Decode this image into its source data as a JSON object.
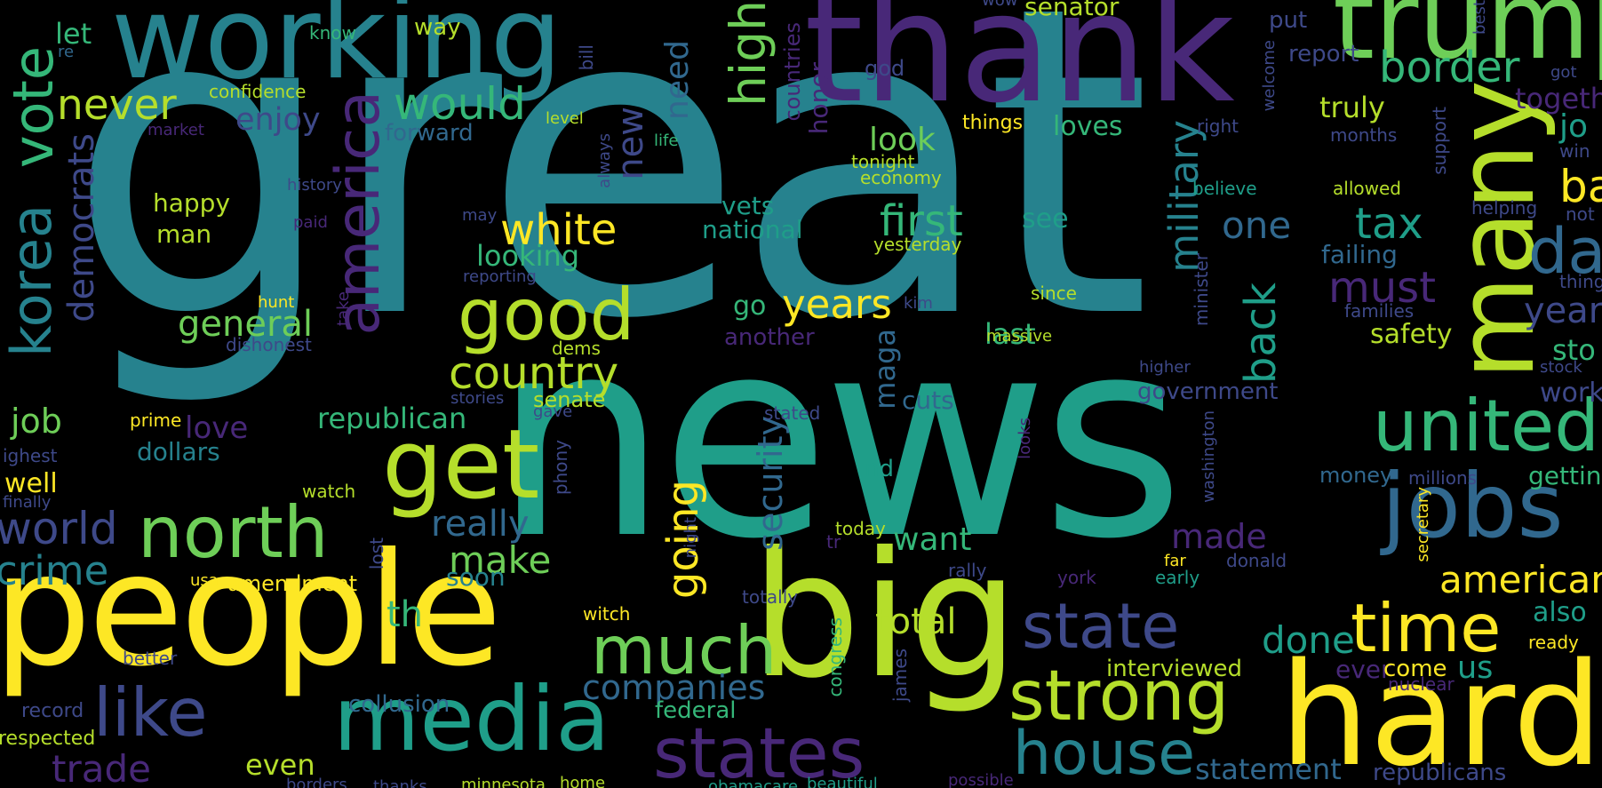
{
  "palette": {
    "yellow": "#fde725",
    "lime": "#b5de2b",
    "lightgreen": "#6ece58",
    "green": "#35b779",
    "teal": "#1f9e89",
    "cyan": "#26828e",
    "blue": "#31688e",
    "indigo": "#3e4989",
    "purple": "#482878",
    "violet": "#440154"
  },
  "words": [
    {
      "text": "great",
      "color": "cyan"
    },
    {
      "text": "news",
      "color": "teal"
    },
    {
      "text": "thank",
      "color": "purple"
    },
    {
      "text": "working",
      "color": "cyan"
    },
    {
      "text": "trump",
      "color": "lightgreen"
    },
    {
      "text": "people",
      "color": "yellow"
    },
    {
      "text": "big",
      "color": "lime"
    },
    {
      "text": "hard",
      "color": "yellow"
    },
    {
      "text": "many",
      "color": "lime"
    },
    {
      "text": "jobs",
      "color": "blue"
    },
    {
      "text": "media",
      "color": "teal"
    },
    {
      "text": "strong",
      "color": "lime"
    },
    {
      "text": "states",
      "color": "purple"
    },
    {
      "text": "united",
      "color": "green"
    },
    {
      "text": "north",
      "color": "lightgreen"
    },
    {
      "text": "get",
      "color": "lime"
    },
    {
      "text": "america",
      "color": "purple"
    },
    {
      "text": "vote",
      "color": "green"
    },
    {
      "text": "korea",
      "color": "cyan"
    },
    {
      "text": "good",
      "color": "lime"
    },
    {
      "text": "like",
      "color": "indigo"
    },
    {
      "text": "much",
      "color": "lightgreen"
    },
    {
      "text": "state",
      "color": "indigo"
    },
    {
      "text": "house",
      "color": "cyan"
    },
    {
      "text": "time",
      "color": "yellow"
    },
    {
      "text": "high",
      "color": "lightgreen"
    },
    {
      "text": "border",
      "color": "green"
    },
    {
      "text": "would",
      "color": "green"
    },
    {
      "text": "never",
      "color": "lime"
    },
    {
      "text": "country",
      "color": "lime"
    },
    {
      "text": "white",
      "color": "yellow"
    },
    {
      "text": "first",
      "color": "green"
    },
    {
      "text": "years",
      "color": "yellow"
    },
    {
      "text": "military",
      "color": "cyan"
    },
    {
      "text": "back",
      "color": "teal"
    },
    {
      "text": "tax",
      "color": "teal"
    },
    {
      "text": "must",
      "color": "purple"
    },
    {
      "text": "democrats",
      "color": "indigo"
    },
    {
      "text": "world",
      "color": "indigo"
    },
    {
      "text": "crime",
      "color": "cyan"
    },
    {
      "text": "going",
      "color": "yellow"
    },
    {
      "text": "security",
      "color": "blue"
    },
    {
      "text": "make",
      "color": "lightgreen"
    },
    {
      "text": "really",
      "color": "blue"
    },
    {
      "text": "new",
      "color": "indigo"
    },
    {
      "text": "need",
      "color": "blue"
    },
    {
      "text": "general",
      "color": "lightgreen"
    },
    {
      "text": "job",
      "color": "lightgreen"
    },
    {
      "text": "one",
      "color": "blue"
    },
    {
      "text": "total",
      "color": "lime"
    },
    {
      "text": "companies",
      "color": "blue"
    },
    {
      "text": "trade",
      "color": "purple"
    },
    {
      "text": "done",
      "color": "teal"
    },
    {
      "text": "us",
      "color": "teal"
    },
    {
      "text": "made",
      "color": "purple"
    },
    {
      "text": "want",
      "color": "green"
    },
    {
      "text": "look",
      "color": "lightgreen"
    },
    {
      "text": "last",
      "color": "green"
    },
    {
      "text": "republican",
      "color": "green"
    },
    {
      "text": "love",
      "color": "purple"
    },
    {
      "text": "th",
      "color": "green"
    },
    {
      "text": "looking",
      "color": "green"
    },
    {
      "text": "enjoy",
      "color": "indigo"
    },
    {
      "text": "truly",
      "color": "lime"
    },
    {
      "text": "loves",
      "color": "green"
    },
    {
      "text": "honor",
      "color": "purple"
    },
    {
      "text": "maga",
      "color": "blue"
    },
    {
      "text": "go",
      "color": "green"
    },
    {
      "text": "cuts",
      "color": "blue"
    },
    {
      "text": "safety",
      "color": "lime"
    },
    {
      "text": "government",
      "color": "indigo"
    },
    {
      "text": "failing",
      "color": "blue"
    },
    {
      "text": "forward",
      "color": "blue"
    },
    {
      "text": "senator",
      "color": "lime"
    },
    {
      "text": "report",
      "color": "indigo"
    },
    {
      "text": "let",
      "color": "green"
    },
    {
      "text": "know",
      "color": "green"
    },
    {
      "text": "way",
      "color": "lime"
    },
    {
      "text": "confidence",
      "color": "lime"
    },
    {
      "text": "re",
      "color": "blue"
    },
    {
      "text": "level",
      "color": "lime"
    },
    {
      "text": "life",
      "color": "green"
    },
    {
      "text": "market",
      "color": "purple"
    },
    {
      "text": "history",
      "color": "indigo"
    },
    {
      "text": "happy",
      "color": "lime"
    },
    {
      "text": "man",
      "color": "lime"
    },
    {
      "text": "paid",
      "color": "purple"
    },
    {
      "text": "hunt",
      "color": "yellow"
    },
    {
      "text": "dishonest",
      "color": "indigo"
    },
    {
      "text": "prime",
      "color": "yellow"
    },
    {
      "text": "dollars",
      "color": "cyan"
    },
    {
      "text": "ighest",
      "color": "indigo"
    },
    {
      "text": "well",
      "color": "yellow"
    },
    {
      "text": "finally",
      "color": "indigo"
    },
    {
      "text": "watch",
      "color": "lime"
    },
    {
      "text": "usa",
      "color": "yellow"
    },
    {
      "text": "amendment",
      "color": "yellow"
    },
    {
      "text": "lost",
      "color": "indigo"
    },
    {
      "text": "soon",
      "color": "cyan"
    },
    {
      "text": "better",
      "color": "indigo"
    },
    {
      "text": "record",
      "color": "indigo"
    },
    {
      "text": "respected",
      "color": "lime"
    },
    {
      "text": "even",
      "color": "lime"
    },
    {
      "text": "collusion",
      "color": "blue"
    },
    {
      "text": "federal",
      "color": "green"
    },
    {
      "text": "witch",
      "color": "yellow"
    },
    {
      "text": "night",
      "color": "indigo"
    },
    {
      "text": "phony",
      "color": "indigo"
    },
    {
      "text": "gave",
      "color": "indigo"
    },
    {
      "text": "senate",
      "color": "lime"
    },
    {
      "text": "stories",
      "color": "indigo"
    },
    {
      "text": "dems",
      "color": "lime"
    },
    {
      "text": "reporting",
      "color": "indigo"
    },
    {
      "text": "may",
      "color": "indigo"
    },
    {
      "text": "always",
      "color": "indigo"
    },
    {
      "text": "bill",
      "color": "indigo"
    },
    {
      "text": "vets",
      "color": "teal"
    },
    {
      "text": "national",
      "color": "teal"
    },
    {
      "text": "another",
      "color": "purple"
    },
    {
      "text": "stated",
      "color": "indigo"
    },
    {
      "text": "nd",
      "color": "teal"
    },
    {
      "text": "today",
      "color": "lime"
    },
    {
      "text": "totally",
      "color": "indigo"
    },
    {
      "text": "congress",
      "color": "green"
    },
    {
      "text": "james",
      "color": "indigo"
    },
    {
      "text": "rally",
      "color": "indigo"
    },
    {
      "text": "far",
      "color": "yellow"
    },
    {
      "text": "york",
      "color": "purple"
    },
    {
      "text": "early",
      "color": "teal"
    },
    {
      "text": "donald",
      "color": "indigo"
    },
    {
      "text": "interviewed",
      "color": "lime"
    },
    {
      "text": "ever",
      "color": "purple"
    },
    {
      "text": "come",
      "color": "yellow"
    },
    {
      "text": "nuclear",
      "color": "purple"
    },
    {
      "text": "money",
      "color": "blue"
    },
    {
      "text": "millions",
      "color": "indigo"
    },
    {
      "text": "secretary",
      "color": "yellow"
    },
    {
      "text": "washington",
      "color": "indigo"
    },
    {
      "text": "looks",
      "color": "purple"
    },
    {
      "text": "higher",
      "color": "indigo"
    },
    {
      "text": "minister",
      "color": "indigo"
    },
    {
      "text": "massive",
      "color": "lime"
    },
    {
      "text": "since",
      "color": "lime"
    },
    {
      "text": "kim",
      "color": "indigo"
    },
    {
      "text": "take",
      "color": "purple"
    },
    {
      "text": "see",
      "color": "teal"
    },
    {
      "text": "yesterday",
      "color": "lime"
    },
    {
      "text": "economy",
      "color": "lime"
    },
    {
      "text": "tonight",
      "color": "lime"
    },
    {
      "text": "things",
      "color": "yellow"
    },
    {
      "text": "god",
      "color": "indigo"
    },
    {
      "text": "countries",
      "color": "purple"
    },
    {
      "text": "believe",
      "color": "teal"
    },
    {
      "text": "allowed",
      "color": "lime"
    },
    {
      "text": "support",
      "color": "indigo"
    },
    {
      "text": "months",
      "color": "indigo"
    },
    {
      "text": "right",
      "color": "indigo"
    },
    {
      "text": "welcome",
      "color": "indigo"
    },
    {
      "text": "put",
      "color": "indigo"
    },
    {
      "text": "helping",
      "color": "indigo"
    },
    {
      "text": "families",
      "color": "indigo"
    },
    {
      "text": "stock",
      "color": "indigo"
    },
    {
      "text": "ready",
      "color": "yellow"
    },
    {
      "text": "also",
      "color": "teal"
    },
    {
      "text": "statement",
      "color": "blue"
    },
    {
      "text": "republicans",
      "color": "indigo"
    },
    {
      "text": "americans",
      "color": "yellow"
    },
    {
      "text": "getting",
      "color": "green"
    },
    {
      "text": "together",
      "color": "purple"
    },
    {
      "text": "best",
      "color": "indigo"
    },
    {
      "text": "got",
      "color": "indigo"
    },
    {
      "text": "jo",
      "color": "teal"
    },
    {
      "text": "win",
      "color": "indigo"
    },
    {
      "text": "ba",
      "color": "yellow"
    },
    {
      "text": "da",
      "color": "blue"
    },
    {
      "text": "not",
      "color": "indigo"
    },
    {
      "text": "thing",
      "color": "indigo"
    },
    {
      "text": "year",
      "color": "indigo"
    },
    {
      "text": "sto",
      "color": "green"
    },
    {
      "text": "work",
      "color": "indigo"
    },
    {
      "text": "borders",
      "color": "indigo"
    },
    {
      "text": "thanks",
      "color": "indigo"
    },
    {
      "text": "minnesota",
      "color": "lime"
    },
    {
      "text": "home",
      "color": "lime"
    },
    {
      "text": "obamacare",
      "color": "teal"
    },
    {
      "text": "beautiful",
      "color": "teal"
    },
    {
      "text": "possible",
      "color": "purple"
    },
    {
      "text": "wow",
      "color": "indigo"
    },
    {
      "text": "tr",
      "color": "purple"
    }
  ]
}
